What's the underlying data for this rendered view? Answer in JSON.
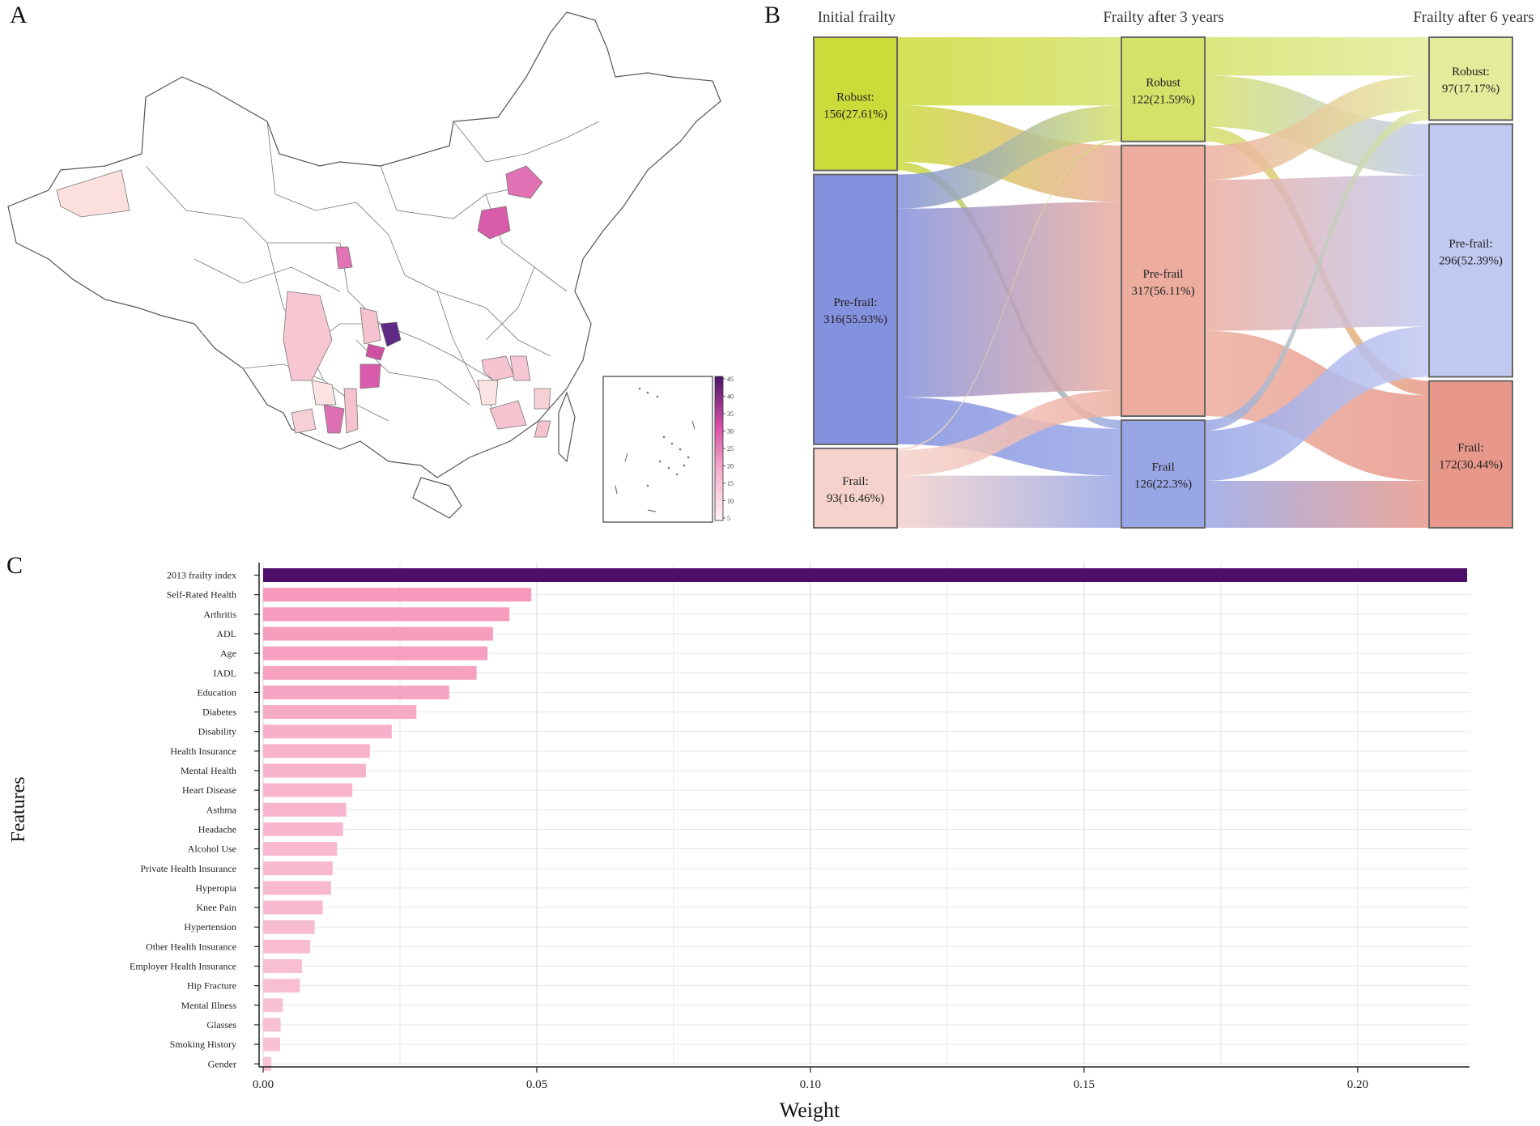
{
  "panels": {
    "a": "A",
    "b": "B",
    "c": "C"
  },
  "map": {
    "legend_ticks": [
      "45",
      "40",
      "35",
      "30",
      "25",
      "20",
      "15",
      "10",
      "5"
    ],
    "colors": {
      "low": "#fbe3e3",
      "mid": "#e07bb6",
      "high": "#5b1f7a"
    }
  },
  "sankey": {
    "stage_titles": [
      "Initial frailty",
      "Frailty after 3 years",
      "Frailty after 6 years"
    ],
    "stages": [
      [
        {
          "name": "Robust:",
          "label": "156(27.61%)",
          "count": 156,
          "color": "#ccdb3a"
        },
        {
          "name": "Pre-frail:",
          "label": "316(55.93%)",
          "count": 316,
          "color": "#8391de"
        },
        {
          "name": "Frail:",
          "label": "93(16.46%)",
          "count": 93,
          "color": "#f5d2cb"
        }
      ],
      [
        {
          "name": "Robust",
          "label": "122(21.59%)",
          "count": 122,
          "color": "#d5e26a"
        },
        {
          "name": "Pre-frail",
          "label": "317(56.11%)",
          "count": 317,
          "color": "#ecad9f"
        },
        {
          "name": "Frail",
          "label": "126(22.3%)",
          "count": 126,
          "color": "#98a6e6"
        }
      ],
      [
        {
          "name": "Robust:",
          "label": "97(17.17%)",
          "count": 97,
          "color": "#e3ec9a"
        },
        {
          "name": "Pre-frail:",
          "label": "296(52.39%)",
          "count": 296,
          "color": "#c2c9f1"
        },
        {
          "name": "Frail:",
          "label": "172(30.44%)",
          "count": 172,
          "color": "#e8988a"
        }
      ]
    ],
    "flows_1_2": [
      {
        "from": 0,
        "to": 0,
        "value": 80
      },
      {
        "from": 0,
        "to": 1,
        "value": 66
      },
      {
        "from": 0,
        "to": 2,
        "value": 10
      },
      {
        "from": 1,
        "to": 0,
        "value": 40
      },
      {
        "from": 1,
        "to": 1,
        "value": 221
      },
      {
        "from": 1,
        "to": 2,
        "value": 55
      },
      {
        "from": 2,
        "to": 0,
        "value": 2
      },
      {
        "from": 2,
        "to": 1,
        "value": 30
      },
      {
        "from": 2,
        "to": 2,
        "value": 61
      }
    ],
    "flows_2_3": [
      {
        "from": 0,
        "to": 0,
        "value": 45
      },
      {
        "from": 0,
        "to": 1,
        "value": 60
      },
      {
        "from": 0,
        "to": 2,
        "value": 17
      },
      {
        "from": 1,
        "to": 0,
        "value": 40
      },
      {
        "from": 1,
        "to": 1,
        "value": 177
      },
      {
        "from": 1,
        "to": 2,
        "value": 100
      },
      {
        "from": 2,
        "to": 0,
        "value": 12
      },
      {
        "from": 2,
        "to": 1,
        "value": 59
      },
      {
        "from": 2,
        "to": 2,
        "value": 55
      }
    ]
  },
  "chart_data": {
    "type": "bar",
    "orientation": "horizontal",
    "xlabel": "Weight",
    "ylabel": "Features",
    "xlim": [
      0,
      0.22
    ],
    "xticks": [
      "0.00",
      "0.05",
      "0.10",
      "0.15",
      "0.20"
    ],
    "categories": [
      "2013 frailty index",
      "Self-Rated Health",
      "Arthritis",
      "ADL",
      "Age",
      "IADL",
      "Education",
      "Diabetes",
      "Disability",
      "Health Insurance",
      "Mental Health",
      "Heart Disease",
      "Asthma",
      "Headache",
      "Alcohol Use",
      "Private Health Insurance",
      "Hyperopia",
      "Knee Pain",
      "Hypertension",
      "Other Health Insurance",
      "Employer Health Insurance",
      "Hip Fracture",
      "Mental Illness",
      "Glasses",
      "Smoking History",
      "Gender"
    ],
    "values": [
      0.22,
      0.049,
      0.045,
      0.042,
      0.041,
      0.039,
      0.034,
      0.028,
      0.0235,
      0.0195,
      0.0188,
      0.0163,
      0.0152,
      0.0146,
      0.0135,
      0.0127,
      0.0124,
      0.0109,
      0.0094,
      0.0086,
      0.0071,
      0.0067,
      0.0036,
      0.0032,
      0.0031,
      0.0015
    ]
  }
}
